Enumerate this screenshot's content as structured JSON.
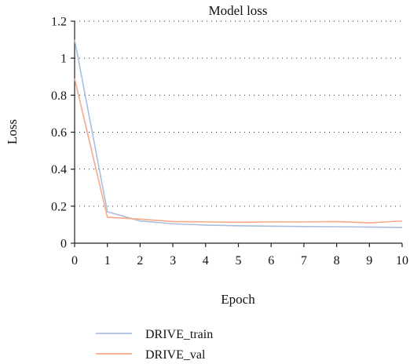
{
  "chart_data": {
    "type": "line",
    "title": "Model loss",
    "xlabel": "Epoch",
    "ylabel": "Loss",
    "xlim": [
      0,
      10
    ],
    "ylim": [
      0,
      1.2
    ],
    "x": [
      0,
      1,
      2,
      3,
      4,
      5,
      6,
      7,
      8,
      9,
      10
    ],
    "x_ticks": [
      "0",
      "1",
      "2",
      "3",
      "4",
      "5",
      "6",
      "7",
      "8",
      "9",
      "10"
    ],
    "y_ticks": [
      {
        "value": 0,
        "label": "0"
      },
      {
        "value": 0.2,
        "label": "0.2"
      },
      {
        "value": 0.4,
        "label": "0.4"
      },
      {
        "value": 0.6,
        "label": "0.6"
      },
      {
        "value": 0.8,
        "label": "0.8"
      },
      {
        "value": 1.0,
        "label": "1"
      },
      {
        "value": 1.2,
        "label": "1.2"
      }
    ],
    "grid": "horizontal dotted",
    "legend_position": "bottom-left, below plot",
    "series": [
      {
        "name": "DRIVE_train",
        "color": "#a9bedf",
        "values": [
          1.1,
          0.17,
          0.12,
          0.105,
          0.098,
          0.094,
          0.092,
          0.09,
          0.089,
          0.087,
          0.085
        ]
      },
      {
        "name": "DRIVE_val",
        "color": "#f7a887",
        "values": [
          0.89,
          0.14,
          0.13,
          0.117,
          0.115,
          0.113,
          0.115,
          0.115,
          0.117,
          0.11,
          0.12
        ]
      }
    ]
  }
}
